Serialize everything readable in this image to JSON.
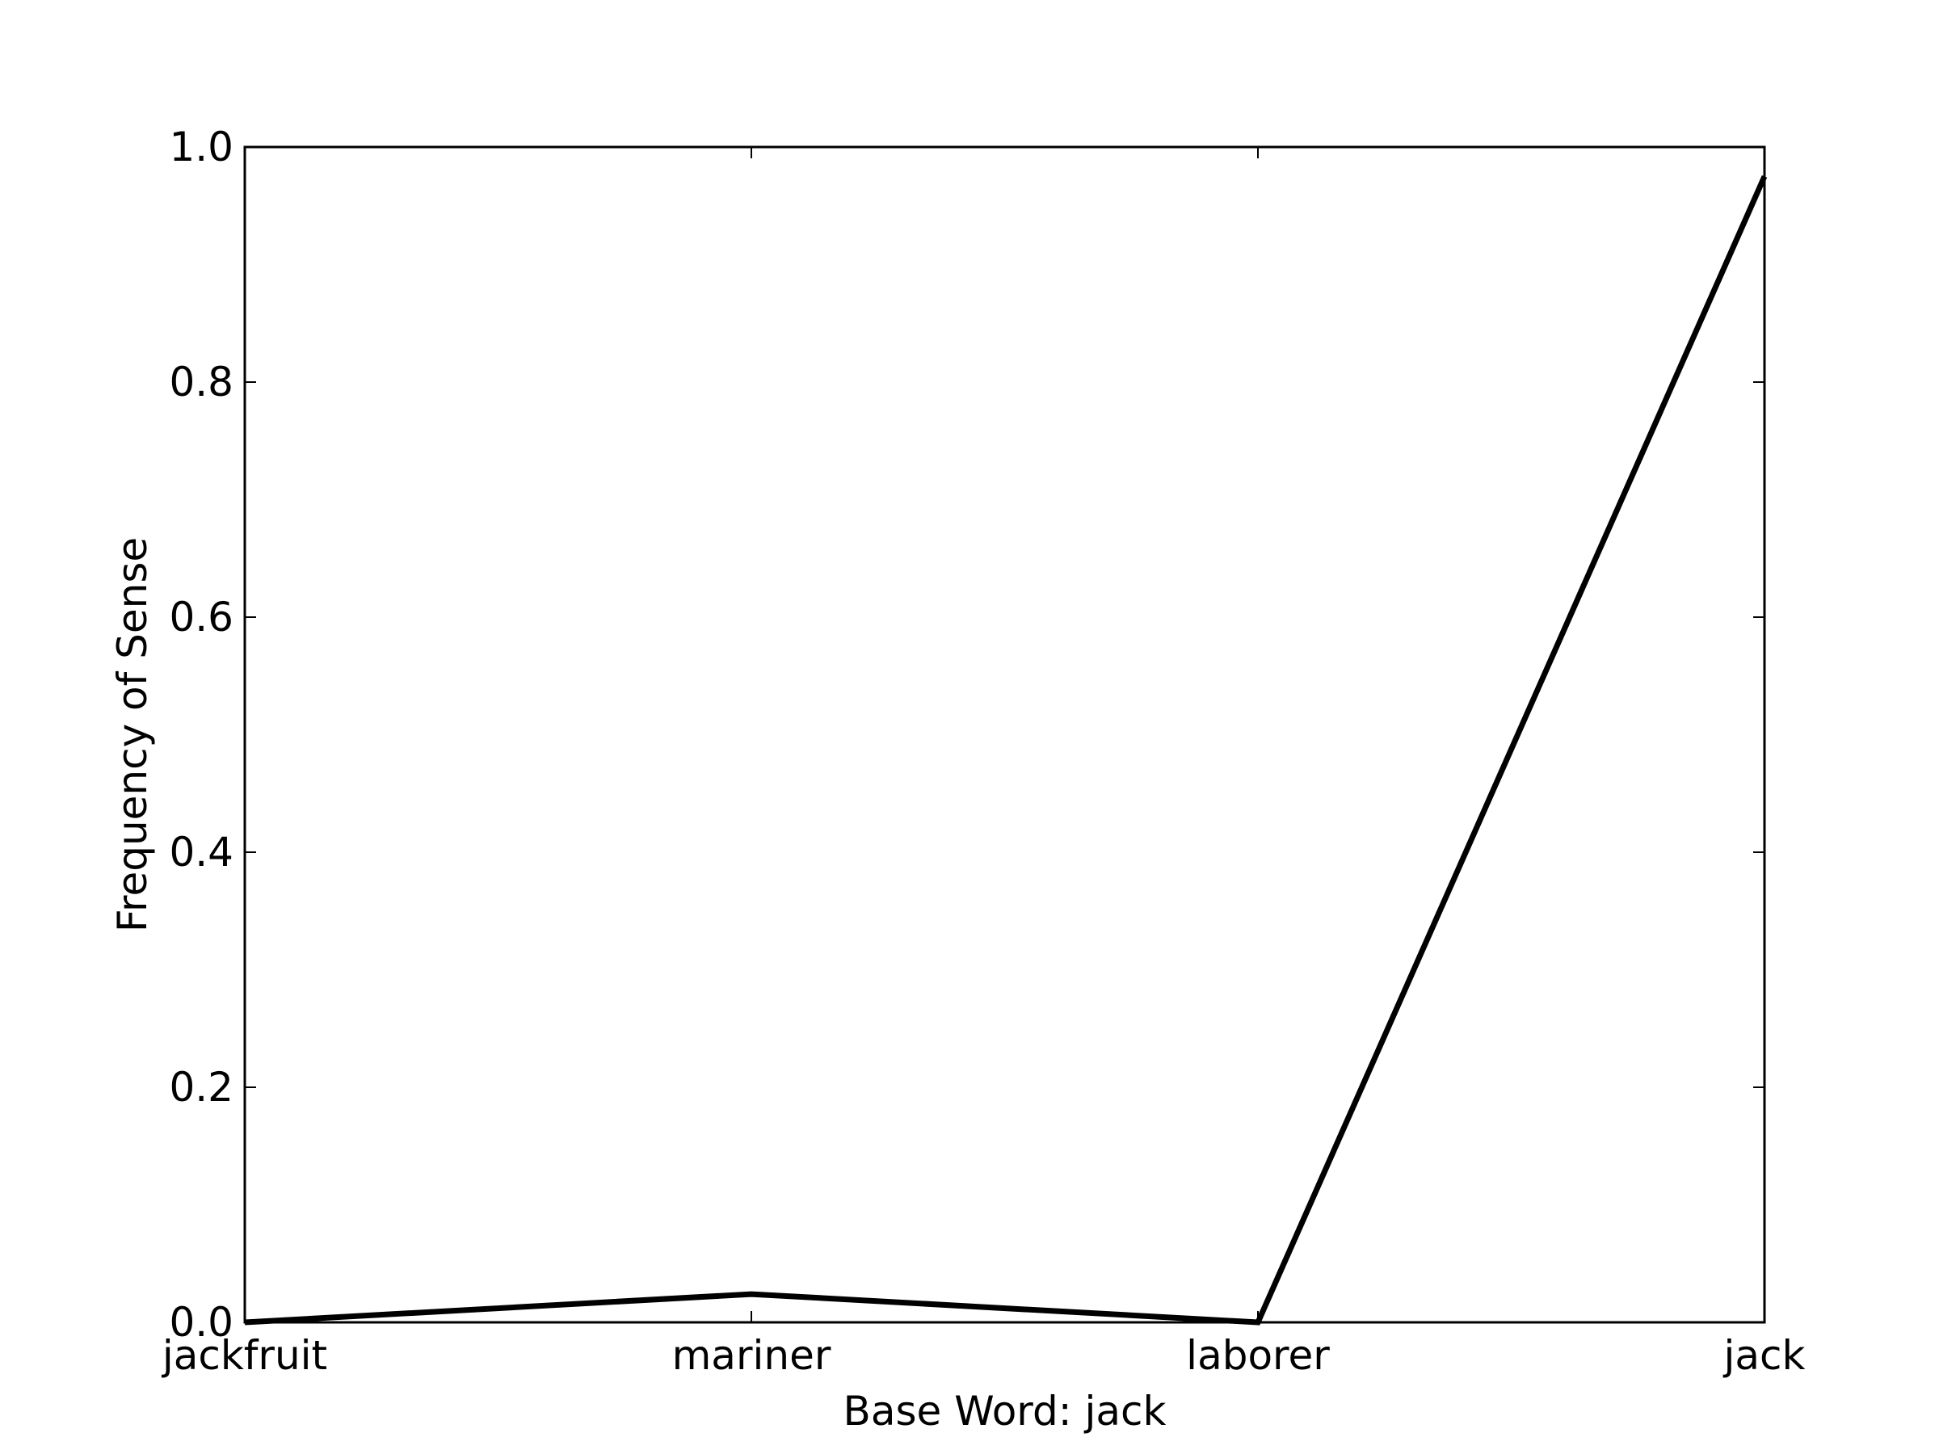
{
  "chart_data": {
    "type": "line",
    "title": "",
    "xlabel": "Base Word: jack",
    "ylabel": "Frequency of Sense",
    "categories": [
      "jackfruit",
      "mariner",
      "laborer",
      "jack"
    ],
    "series": [
      {
        "values": [
          0.0,
          0.024,
          0.0,
          0.975
        ],
        "color": "#000000"
      }
    ],
    "ylim": [
      0,
      1.0
    ],
    "yticks": [
      "0.0",
      "0.2",
      "0.4",
      "0.6",
      "0.8",
      "1.0"
    ],
    "grid": false,
    "legend": "none"
  }
}
